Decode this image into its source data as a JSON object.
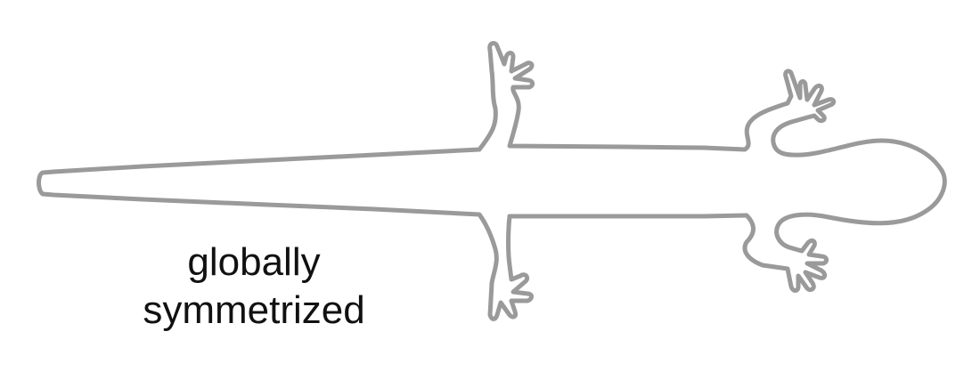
{
  "caption": {
    "line1": "globally",
    "line2": "symmetrized"
  },
  "colors": {
    "outline": "#9a9a9a",
    "text": "#111111",
    "background": "#ffffff"
  },
  "figure": {
    "subject": "salamander-outline",
    "view": "dorsal"
  }
}
